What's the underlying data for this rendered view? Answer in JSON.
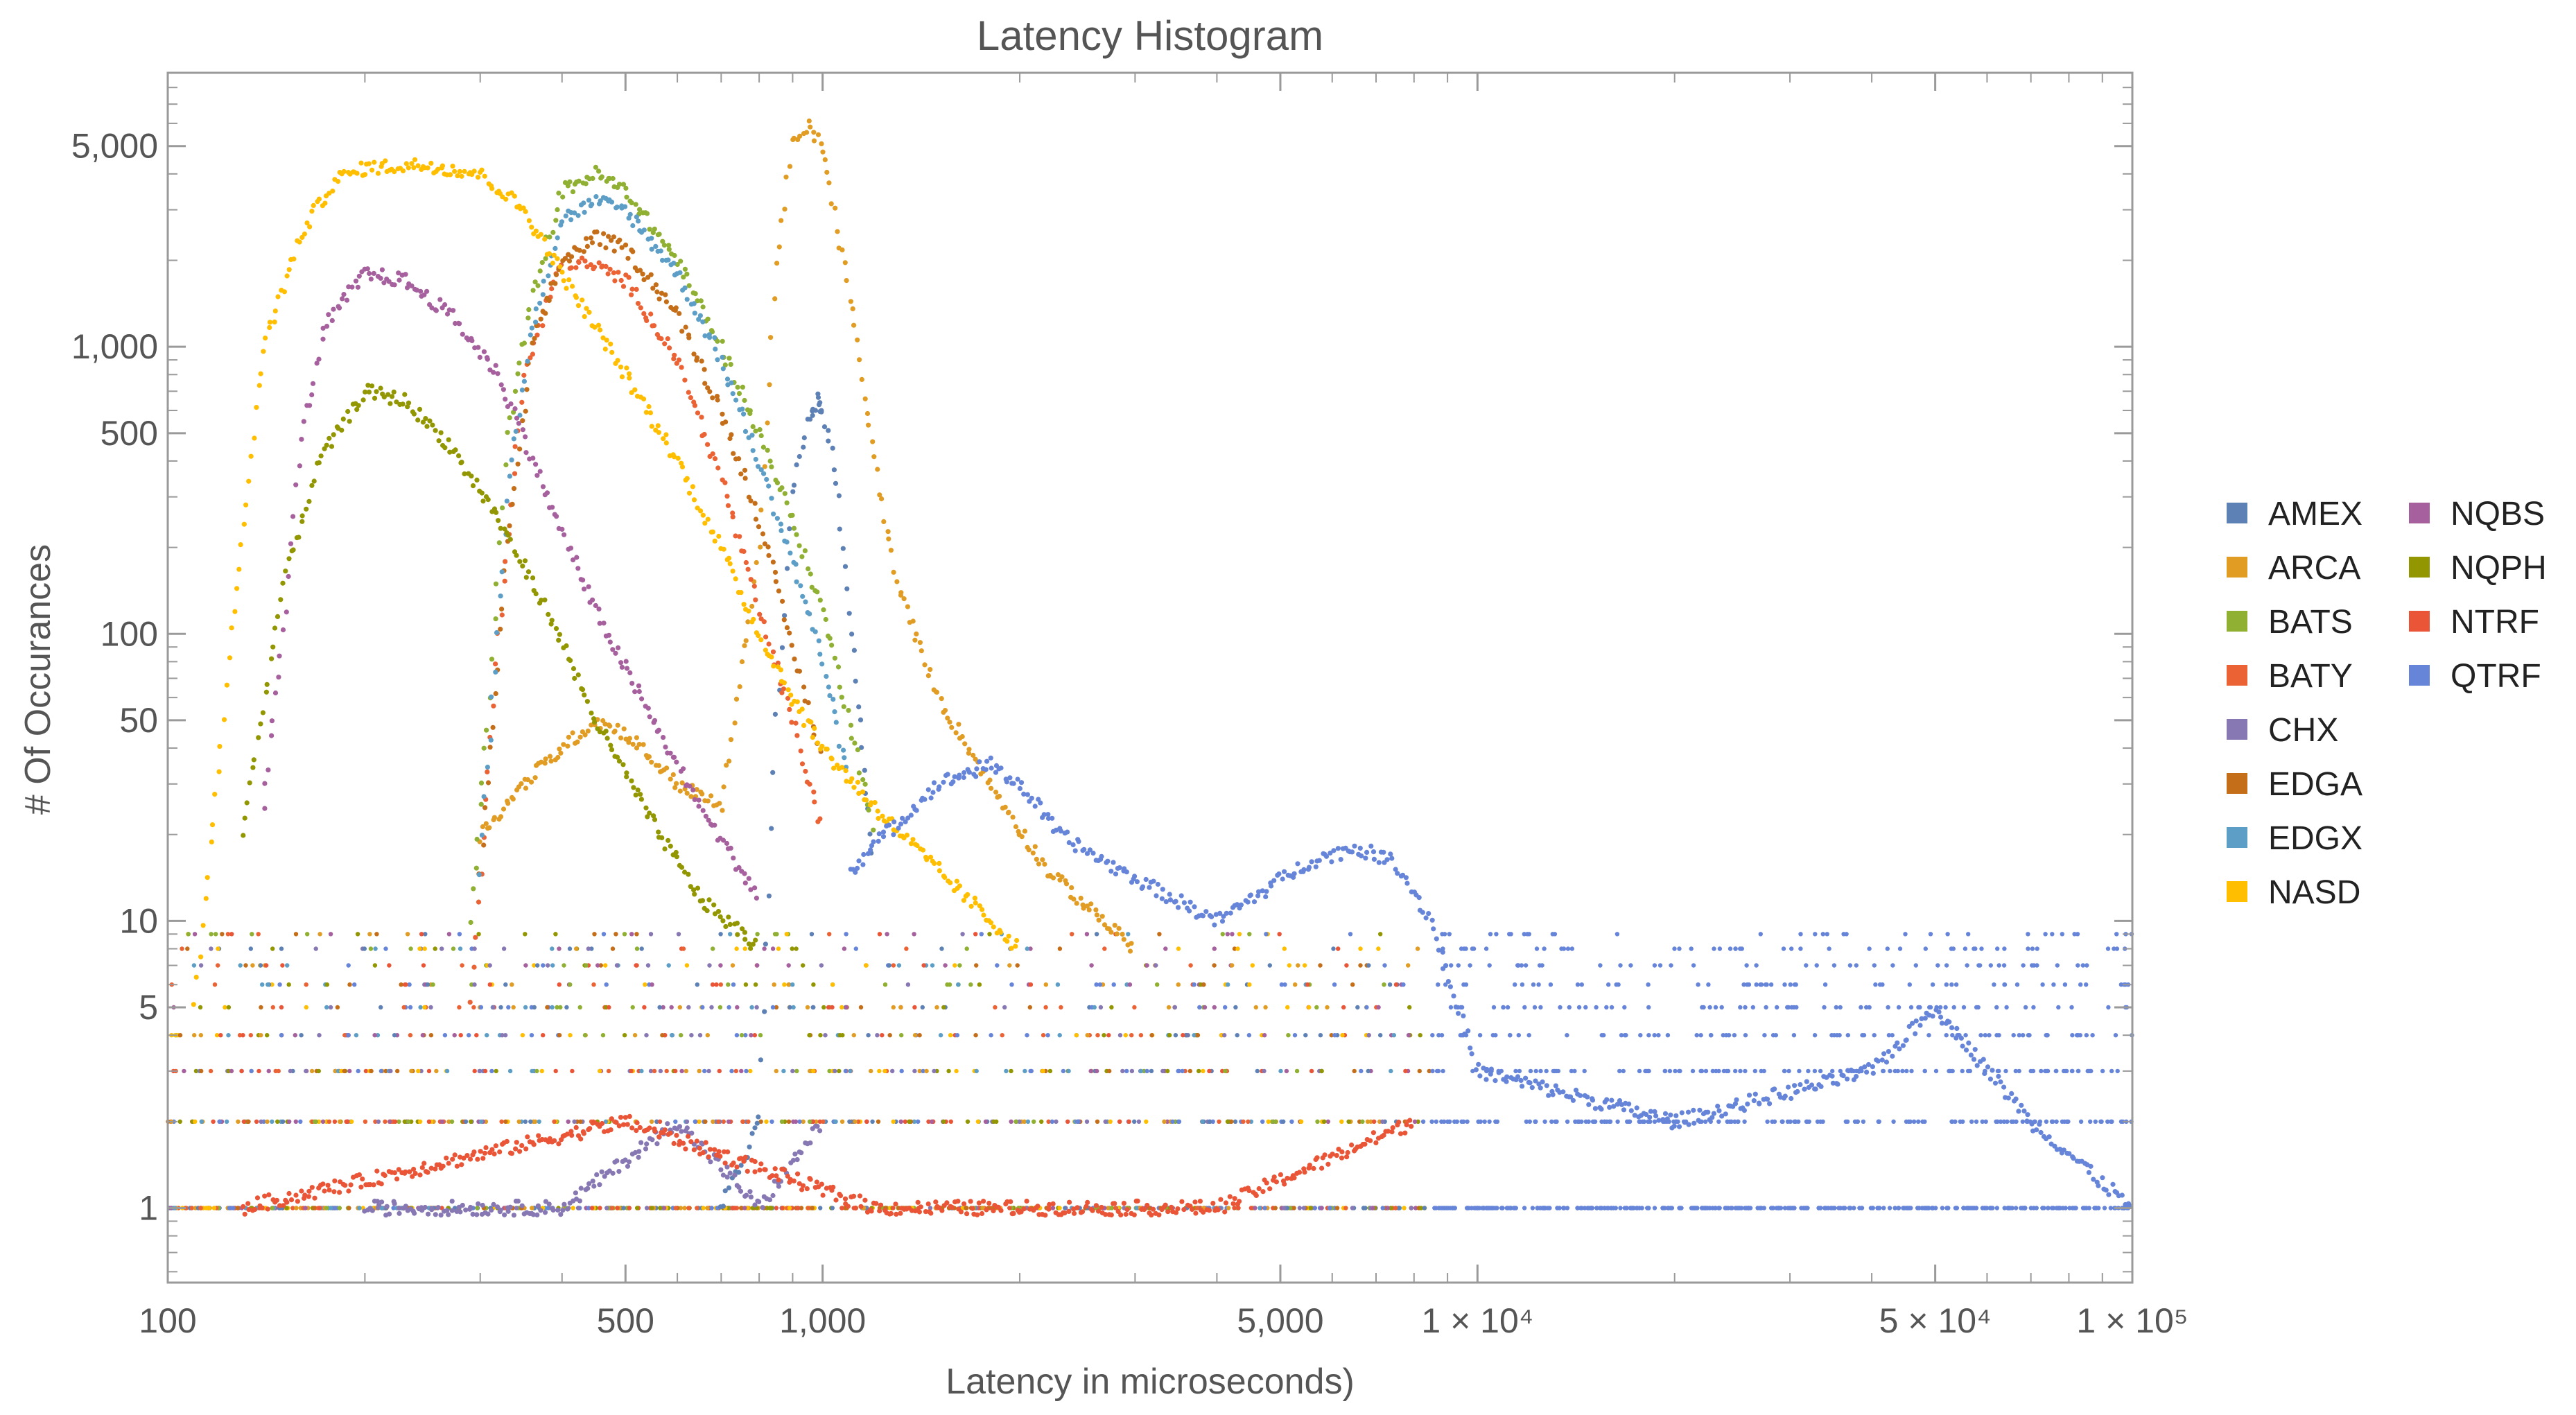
{
  "chart_data": {
    "type": "scatter",
    "title": "Latency Histogram",
    "xlabel": "Latency in microseconds)",
    "ylabel": "# Of Occurances",
    "x_scale": "log",
    "y_scale": "log",
    "xlim": [
      100,
      100000
    ],
    "ylim": [
      0.55,
      9000
    ],
    "grid": false,
    "legend_position": "right",
    "x_ticks": [
      {
        "value": 100,
        "label": "100"
      },
      {
        "value": 500,
        "label": "500"
      },
      {
        "value": 1000,
        "label": "1,000"
      },
      {
        "value": 5000,
        "label": "5,000"
      },
      {
        "value": 10000,
        "label": "1 × 10⁴"
      },
      {
        "value": 50000,
        "label": "5 × 10⁴"
      },
      {
        "value": 100000,
        "label": "1 × 10⁵"
      }
    ],
    "y_ticks": [
      {
        "value": 1,
        "label": "1"
      },
      {
        "value": 5,
        "label": "5"
      },
      {
        "value": 10,
        "label": "10"
      },
      {
        "value": 50,
        "label": "50"
      },
      {
        "value": 100,
        "label": "100"
      },
      {
        "value": 500,
        "label": "500"
      },
      {
        "value": 1000,
        "label": "1,000"
      },
      {
        "value": 5000,
        "label": "5,000"
      }
    ],
    "series": [
      {
        "name": "AMEX",
        "color": "#5e81b5",
        "points": [
          [
            700,
            1
          ],
          [
            800,
            2
          ],
          [
            850,
            50
          ],
          [
            900,
            300
          ],
          [
            950,
            550
          ],
          [
            980,
            650
          ],
          [
            1000,
            600
          ],
          [
            1050,
            350
          ],
          [
            1100,
            120
          ],
          [
            1150,
            40
          ],
          [
            1200,
            15
          ]
        ]
      },
      {
        "name": "ARCA",
        "color": "#e19c24",
        "points": [
          [
            300,
            20
          ],
          [
            350,
            30
          ],
          [
            400,
            40
          ],
          [
            450,
            50
          ],
          [
            500,
            45
          ],
          [
            600,
            30
          ],
          [
            700,
            25
          ],
          [
            800,
            200
          ],
          [
            850,
            2000
          ],
          [
            900,
            5000
          ],
          [
            950,
            5800
          ],
          [
            1000,
            5000
          ],
          [
            1100,
            1500
          ],
          [
            1200,
            400
          ],
          [
            1300,
            150
          ],
          [
            1500,
            60
          ],
          [
            1800,
            30
          ],
          [
            2200,
            15
          ],
          [
            3000,
            8
          ]
        ]
      },
      {
        "name": "BATS",
        "color": "#8fb032",
        "points": [
          [
            290,
            10
          ],
          [
            310,
            60
          ],
          [
            330,
            500
          ],
          [
            360,
            1500
          ],
          [
            400,
            3500
          ],
          [
            450,
            4000
          ],
          [
            500,
            3500
          ],
          [
            600,
            2000
          ],
          [
            700,
            1000
          ],
          [
            800,
            500
          ],
          [
            900,
            250
          ],
          [
            1000,
            120
          ],
          [
            1100,
            50
          ],
          [
            1200,
            20
          ]
        ]
      },
      {
        "name": "BATY",
        "color": "#eb6235",
        "points": [
          [
            290,
            5
          ],
          [
            320,
            100
          ],
          [
            350,
            800
          ],
          [
            400,
            2000
          ],
          [
            450,
            1900
          ],
          [
            500,
            1700
          ],
          [
            600,
            900
          ],
          [
            700,
            350
          ],
          [
            800,
            120
          ],
          [
            900,
            50
          ],
          [
            1000,
            20
          ]
        ]
      },
      {
        "name": "CHX",
        "color": "#8778b3",
        "points": [
          [
            200,
            1
          ],
          [
            400,
            1
          ],
          [
            600,
            2
          ],
          [
            800,
            1
          ],
          [
            1000,
            2
          ]
        ]
      },
      {
        "name": "EDGA",
        "color": "#c56e1a",
        "points": [
          [
            300,
            15
          ],
          [
            330,
            200
          ],
          [
            360,
            1000
          ],
          [
            400,
            2000
          ],
          [
            450,
            2400
          ],
          [
            500,
            2200
          ],
          [
            600,
            1300
          ],
          [
            700,
            600
          ],
          [
            800,
            250
          ],
          [
            900,
            90
          ],
          [
            1000,
            35
          ]
        ]
      },
      {
        "name": "EDGX",
        "color": "#5d9ec7",
        "points": [
          [
            300,
            15
          ],
          [
            330,
            300
          ],
          [
            360,
            1200
          ],
          [
            400,
            2800
          ],
          [
            450,
            3200
          ],
          [
            500,
            3000
          ],
          [
            600,
            1800
          ],
          [
            700,
            900
          ],
          [
            800,
            400
          ],
          [
            900,
            180
          ],
          [
            1000,
            80
          ],
          [
            1100,
            30
          ]
        ]
      },
      {
        "name": "NASD",
        "color": "#ffbf00",
        "points": [
          [
            110,
            5
          ],
          [
            125,
            100
          ],
          [
            140,
            1000
          ],
          [
            160,
            2500
          ],
          [
            180,
            3800
          ],
          [
            200,
            4200
          ],
          [
            250,
            4300
          ],
          [
            300,
            4000
          ],
          [
            350,
            3000
          ],
          [
            400,
            1800
          ],
          [
            500,
            800
          ],
          [
            600,
            400
          ],
          [
            700,
            200
          ],
          [
            800,
            100
          ],
          [
            900,
            60
          ],
          [
            1000,
            40
          ],
          [
            1200,
            25
          ],
          [
            1500,
            15
          ],
          [
            2000,
            8
          ]
        ]
      },
      {
        "name": "NQBS",
        "color": "#a5609d",
        "points": [
          [
            140,
            25
          ],
          [
            150,
            100
          ],
          [
            160,
            500
          ],
          [
            175,
            1200
          ],
          [
            200,
            1800
          ],
          [
            230,
            1700
          ],
          [
            270,
            1300
          ],
          [
            320,
            800
          ],
          [
            380,
            300
          ],
          [
            450,
            120
          ],
          [
            550,
            50
          ],
          [
            650,
            25
          ],
          [
            800,
            12
          ]
        ]
      },
      {
        "name": "NQPH",
        "color": "#929600",
        "points": [
          [
            130,
            20
          ],
          [
            150,
            150
          ],
          [
            170,
            400
          ],
          [
            200,
            700
          ],
          [
            230,
            650
          ],
          [
            270,
            450
          ],
          [
            320,
            250
          ],
          [
            380,
            120
          ],
          [
            450,
            50
          ],
          [
            550,
            22
          ],
          [
            650,
            12
          ],
          [
            800,
            8
          ]
        ]
      },
      {
        "name": "NTRF",
        "color": "#e95536",
        "points": [
          [
            130,
            1
          ],
          [
            500,
            2
          ],
          [
            1200,
            1
          ],
          [
            2000,
            1
          ],
          [
            4000,
            1
          ],
          [
            8000,
            2
          ]
        ]
      },
      {
        "name": "QTRF",
        "color": "#6685d9",
        "points": [
          [
            1100,
            15
          ],
          [
            1300,
            22
          ],
          [
            1500,
            30
          ],
          [
            1800,
            35
          ],
          [
            2000,
            30
          ],
          [
            2300,
            20
          ],
          [
            2700,
            16
          ],
          [
            3200,
            13
          ],
          [
            4000,
            10
          ],
          [
            5500,
            16
          ],
          [
            6500,
            18
          ],
          [
            7500,
            16
          ],
          [
            8500,
            10
          ],
          [
            10000,
            3
          ],
          [
            20000,
            2
          ],
          [
            40000,
            3
          ],
          [
            50000,
            5
          ],
          [
            70000,
            2
          ],
          [
            100000,
            1
          ]
        ]
      }
    ],
    "noise_floor": {
      "levels": [
        1,
        2,
        3,
        4,
        5,
        6,
        7,
        8,
        9
      ],
      "x_min": 100,
      "x_max": 100000
    }
  }
}
